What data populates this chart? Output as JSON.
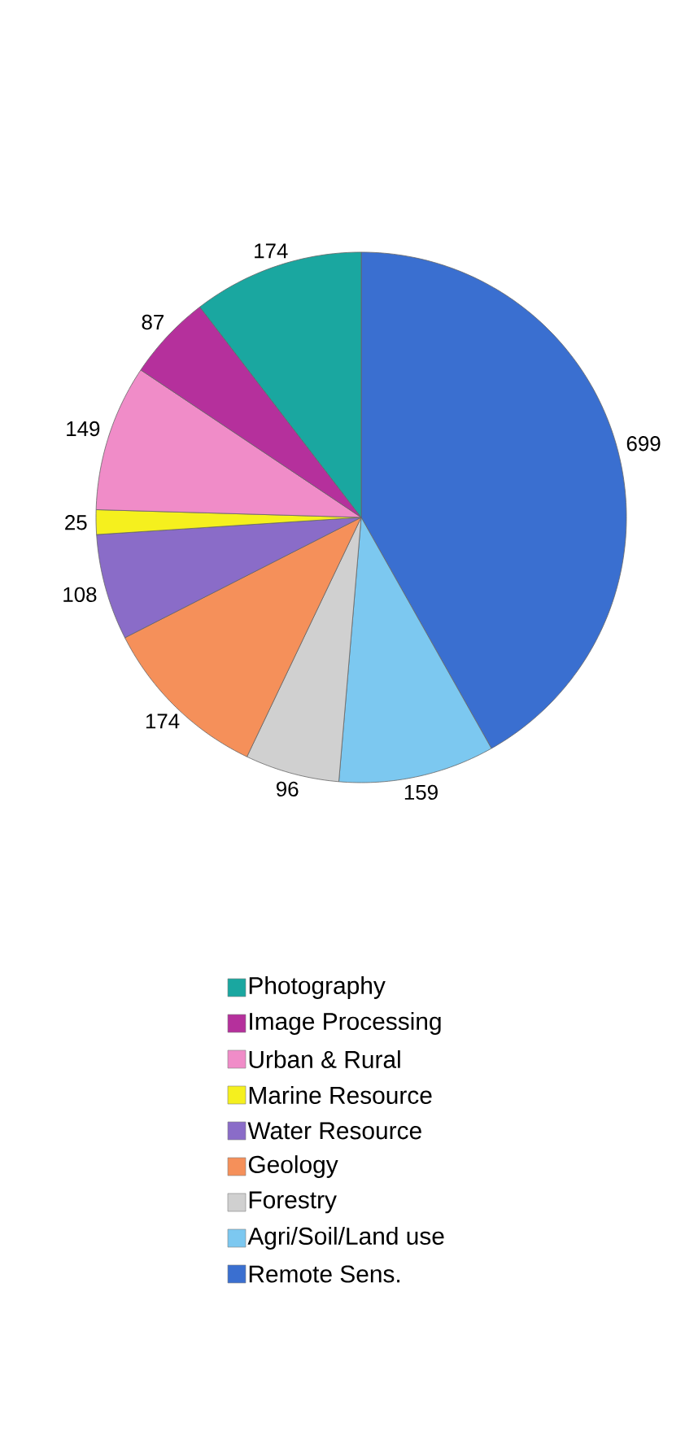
{
  "chart_data": {
    "type": "pie",
    "categories": [
      "Remote Sens.",
      "Agri/Soil/Land use",
      "Forestry",
      "Geology",
      "Water Resource",
      "Marine Resource",
      "Urban & Rural",
      "Image Processing",
      "Photography"
    ],
    "values": [
      699,
      159,
      96,
      174,
      108,
      25,
      149,
      87,
      174
    ],
    "colors": [
      "#3a6fd0",
      "#7cc8f0",
      "#d0d0d0",
      "#f5905a",
      "#8a6cc8",
      "#f5f01e",
      "#f08cc8",
      "#b5309c",
      "#1aa7a0"
    ],
    "data_labels": true,
    "legend": "bottom"
  }
}
